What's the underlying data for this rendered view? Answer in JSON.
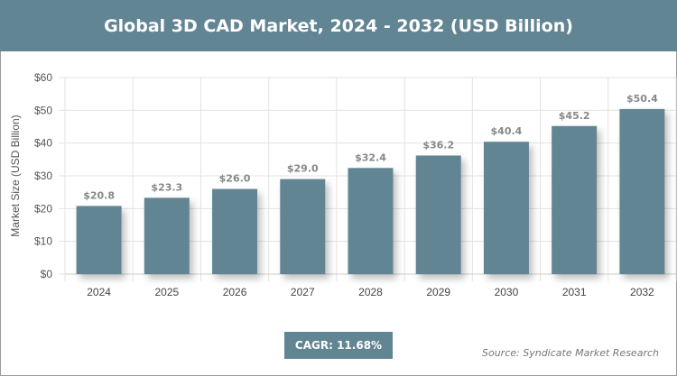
{
  "chart_data": {
    "type": "bar",
    "title": "Global 3D CAD Market, 2024 - 2032 (USD Billion)",
    "categories": [
      "2024",
      "2025",
      "2026",
      "2027",
      "2028",
      "2029",
      "2030",
      "2031",
      "2032"
    ],
    "values": [
      20.8,
      23.3,
      26.0,
      29.0,
      32.4,
      36.2,
      40.4,
      45.2,
      50.4
    ],
    "data_labels": [
      "$20.8",
      "$23.3",
      "$26.0",
      "$29.0",
      "$32.4",
      "$36.2",
      "$40.4",
      "$45.2",
      "$50.4"
    ],
    "xlabel": "",
    "ylabel": "Market Size (USD Billion)",
    "ylim": [
      0,
      60
    ],
    "yticks": [
      "$0",
      "$10",
      "$20",
      "$30",
      "$40",
      "$50",
      "$60"
    ],
    "grid": true,
    "bar_color": "#628594",
    "header_color": "#628594"
  },
  "badge": {
    "cagr": "CAGR: 11.68%"
  },
  "source": "Source: Syndicate Market Research"
}
